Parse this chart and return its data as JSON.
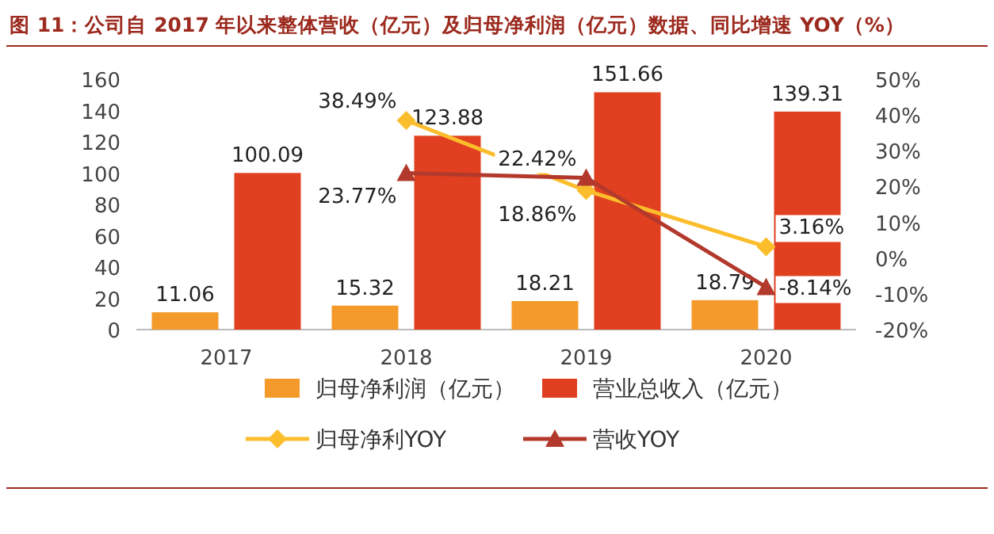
{
  "chart_data": {
    "type": "bar",
    "title": "图 11：公司自 2017 年以来整体营收（亿元）及归母净利润（亿元）数据、同比增速 YOY（%）",
    "categories": [
      "2017",
      "2018",
      "2019",
      "2020"
    ],
    "series": [
      {
        "name": "归母净利润（亿元）",
        "color": "#f39a2a",
        "values": [
          11.06,
          15.32,
          18.21,
          18.79
        ]
      },
      {
        "name": "营业总收入（亿元）",
        "color": "#e0401f",
        "values": [
          100.09,
          123.88,
          151.66,
          139.31
        ]
      },
      {
        "name": "归母净利YOY",
        "type": "line",
        "axis": "y2",
        "marker": "diamond",
        "color": "#fbbd2b",
        "values": [
          null,
          38.49,
          18.86,
          3.16
        ],
        "value_labels": [
          null,
          "38.49%",
          "18.86%",
          "3.16%"
        ]
      },
      {
        "name": "营收YOY",
        "type": "line",
        "axis": "y2",
        "marker": "triangle",
        "color": "#b2392c",
        "values": [
          null,
          23.77,
          22.42,
          -8.14
        ],
        "value_labels": [
          null,
          "23.77%",
          "22.42%",
          "-8.14%"
        ]
      }
    ],
    "ylim": [
      0,
      160
    ],
    "yticks": [
      0,
      20,
      40,
      60,
      80,
      100,
      120,
      140,
      160
    ],
    "y2lim": [
      -20,
      50
    ],
    "y2ticks": [
      {
        "value": -20,
        "label": "-20%"
      },
      {
        "value": -10,
        "label": "-10%"
      },
      {
        "value": 0,
        "label": "0%"
      },
      {
        "value": 10,
        "label": "10%"
      },
      {
        "value": 20,
        "label": "20%"
      },
      {
        "value": 30,
        "label": "30%"
      },
      {
        "value": 40,
        "label": "40%"
      },
      {
        "value": 50,
        "label": "50%"
      }
    ],
    "data_labels": true,
    "legend": "bottom",
    "grid": false
  }
}
